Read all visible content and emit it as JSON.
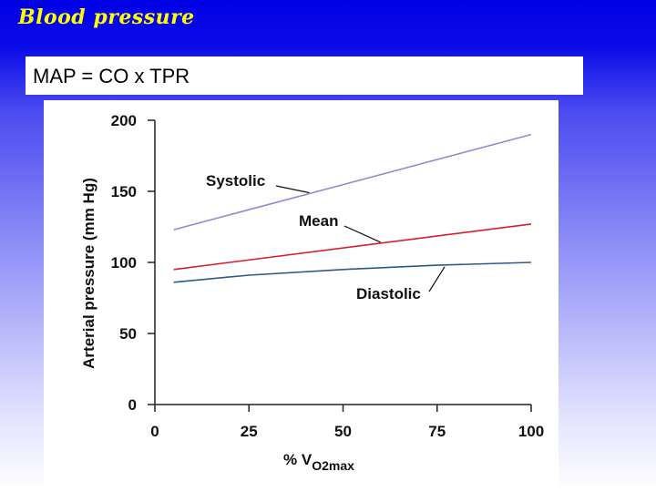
{
  "slide": {
    "title": "Blood pressure",
    "formula": "MAP = CO x TPR"
  },
  "chart_data": {
    "type": "line",
    "xlabel": "% V",
    "xlabel_sub": "O2max",
    "ylabel": "Arterial pressure (mm Hg)",
    "xlim": [
      0,
      100
    ],
    "ylim": [
      0,
      200
    ],
    "x_ticks": [
      0,
      25,
      50,
      75,
      100
    ],
    "y_ticks": [
      0,
      50,
      100,
      150,
      200
    ],
    "grid": false,
    "series": [
      {
        "name": "Systolic",
        "color": "#9a86c8",
        "x": [
          5,
          100
        ],
        "y": [
          123,
          190
        ]
      },
      {
        "name": "Mean",
        "color": "#d4202a",
        "x": [
          5,
          100
        ],
        "y": [
          95,
          127
        ]
      },
      {
        "name": "Diastolic",
        "color": "#2e5a88",
        "x": [
          5,
          25,
          50,
          75,
          100
        ],
        "y": [
          86,
          91,
          95,
          98,
          100
        ]
      }
    ],
    "annotations": [
      {
        "text": "Systolic",
        "series": 0,
        "target_x": 41
      },
      {
        "text": "Mean",
        "series": 1,
        "target_x": 60
      },
      {
        "text": "Diastolic",
        "series": 2,
        "target_x": 77
      }
    ]
  }
}
